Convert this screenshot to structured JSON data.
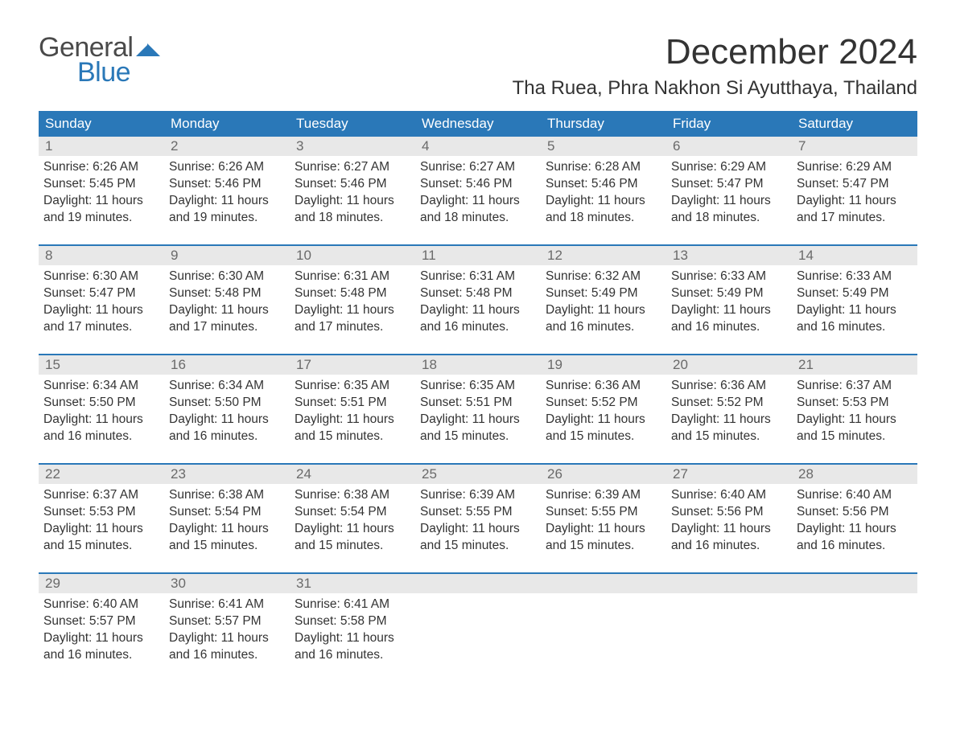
{
  "logo": {
    "general": "General",
    "blue": "Blue"
  },
  "title": "December 2024",
  "location": "Tha Ruea, Phra Nakhon Si Ayutthaya, Thailand",
  "colors": {
    "header_bg": "#2a78b8",
    "header_text": "#ffffff",
    "daynum_bg": "#e8e8e8",
    "daynum_text": "#6a6a6a",
    "body_text": "#333333",
    "week_border": "#2a78b8",
    "page_bg": "#ffffff"
  },
  "fonts": {
    "title_size_pt": 33,
    "location_size_pt": 18,
    "dow_size_pt": 13,
    "daynum_size_pt": 13,
    "body_size_pt": 11.5
  },
  "dow": [
    "Sunday",
    "Monday",
    "Tuesday",
    "Wednesday",
    "Thursday",
    "Friday",
    "Saturday"
  ],
  "weeks": [
    [
      {
        "n": "1",
        "sr": "Sunrise: 6:26 AM",
        "ss": "Sunset: 5:45 PM",
        "d1": "Daylight: 11 hours",
        "d2": "and 19 minutes."
      },
      {
        "n": "2",
        "sr": "Sunrise: 6:26 AM",
        "ss": "Sunset: 5:46 PM",
        "d1": "Daylight: 11 hours",
        "d2": "and 19 minutes."
      },
      {
        "n": "3",
        "sr": "Sunrise: 6:27 AM",
        "ss": "Sunset: 5:46 PM",
        "d1": "Daylight: 11 hours",
        "d2": "and 18 minutes."
      },
      {
        "n": "4",
        "sr": "Sunrise: 6:27 AM",
        "ss": "Sunset: 5:46 PM",
        "d1": "Daylight: 11 hours",
        "d2": "and 18 minutes."
      },
      {
        "n": "5",
        "sr": "Sunrise: 6:28 AM",
        "ss": "Sunset: 5:46 PM",
        "d1": "Daylight: 11 hours",
        "d2": "and 18 minutes."
      },
      {
        "n": "6",
        "sr": "Sunrise: 6:29 AM",
        "ss": "Sunset: 5:47 PM",
        "d1": "Daylight: 11 hours",
        "d2": "and 18 minutes."
      },
      {
        "n": "7",
        "sr": "Sunrise: 6:29 AM",
        "ss": "Sunset: 5:47 PM",
        "d1": "Daylight: 11 hours",
        "d2": "and 17 minutes."
      }
    ],
    [
      {
        "n": "8",
        "sr": "Sunrise: 6:30 AM",
        "ss": "Sunset: 5:47 PM",
        "d1": "Daylight: 11 hours",
        "d2": "and 17 minutes."
      },
      {
        "n": "9",
        "sr": "Sunrise: 6:30 AM",
        "ss": "Sunset: 5:48 PM",
        "d1": "Daylight: 11 hours",
        "d2": "and 17 minutes."
      },
      {
        "n": "10",
        "sr": "Sunrise: 6:31 AM",
        "ss": "Sunset: 5:48 PM",
        "d1": "Daylight: 11 hours",
        "d2": "and 17 minutes."
      },
      {
        "n": "11",
        "sr": "Sunrise: 6:31 AM",
        "ss": "Sunset: 5:48 PM",
        "d1": "Daylight: 11 hours",
        "d2": "and 16 minutes."
      },
      {
        "n": "12",
        "sr": "Sunrise: 6:32 AM",
        "ss": "Sunset: 5:49 PM",
        "d1": "Daylight: 11 hours",
        "d2": "and 16 minutes."
      },
      {
        "n": "13",
        "sr": "Sunrise: 6:33 AM",
        "ss": "Sunset: 5:49 PM",
        "d1": "Daylight: 11 hours",
        "d2": "and 16 minutes."
      },
      {
        "n": "14",
        "sr": "Sunrise: 6:33 AM",
        "ss": "Sunset: 5:49 PM",
        "d1": "Daylight: 11 hours",
        "d2": "and 16 minutes."
      }
    ],
    [
      {
        "n": "15",
        "sr": "Sunrise: 6:34 AM",
        "ss": "Sunset: 5:50 PM",
        "d1": "Daylight: 11 hours",
        "d2": "and 16 minutes."
      },
      {
        "n": "16",
        "sr": "Sunrise: 6:34 AM",
        "ss": "Sunset: 5:50 PM",
        "d1": "Daylight: 11 hours",
        "d2": "and 16 minutes."
      },
      {
        "n": "17",
        "sr": "Sunrise: 6:35 AM",
        "ss": "Sunset: 5:51 PM",
        "d1": "Daylight: 11 hours",
        "d2": "and 15 minutes."
      },
      {
        "n": "18",
        "sr": "Sunrise: 6:35 AM",
        "ss": "Sunset: 5:51 PM",
        "d1": "Daylight: 11 hours",
        "d2": "and 15 minutes."
      },
      {
        "n": "19",
        "sr": "Sunrise: 6:36 AM",
        "ss": "Sunset: 5:52 PM",
        "d1": "Daylight: 11 hours",
        "d2": "and 15 minutes."
      },
      {
        "n": "20",
        "sr": "Sunrise: 6:36 AM",
        "ss": "Sunset: 5:52 PM",
        "d1": "Daylight: 11 hours",
        "d2": "and 15 minutes."
      },
      {
        "n": "21",
        "sr": "Sunrise: 6:37 AM",
        "ss": "Sunset: 5:53 PM",
        "d1": "Daylight: 11 hours",
        "d2": "and 15 minutes."
      }
    ],
    [
      {
        "n": "22",
        "sr": "Sunrise: 6:37 AM",
        "ss": "Sunset: 5:53 PM",
        "d1": "Daylight: 11 hours",
        "d2": "and 15 minutes."
      },
      {
        "n": "23",
        "sr": "Sunrise: 6:38 AM",
        "ss": "Sunset: 5:54 PM",
        "d1": "Daylight: 11 hours",
        "d2": "and 15 minutes."
      },
      {
        "n": "24",
        "sr": "Sunrise: 6:38 AM",
        "ss": "Sunset: 5:54 PM",
        "d1": "Daylight: 11 hours",
        "d2": "and 15 minutes."
      },
      {
        "n": "25",
        "sr": "Sunrise: 6:39 AM",
        "ss": "Sunset: 5:55 PM",
        "d1": "Daylight: 11 hours",
        "d2": "and 15 minutes."
      },
      {
        "n": "26",
        "sr": "Sunrise: 6:39 AM",
        "ss": "Sunset: 5:55 PM",
        "d1": "Daylight: 11 hours",
        "d2": "and 15 minutes."
      },
      {
        "n": "27",
        "sr": "Sunrise: 6:40 AM",
        "ss": "Sunset: 5:56 PM",
        "d1": "Daylight: 11 hours",
        "d2": "and 16 minutes."
      },
      {
        "n": "28",
        "sr": "Sunrise: 6:40 AM",
        "ss": "Sunset: 5:56 PM",
        "d1": "Daylight: 11 hours",
        "d2": "and 16 minutes."
      }
    ],
    [
      {
        "n": "29",
        "sr": "Sunrise: 6:40 AM",
        "ss": "Sunset: 5:57 PM",
        "d1": "Daylight: 11 hours",
        "d2": "and 16 minutes."
      },
      {
        "n": "30",
        "sr": "Sunrise: 6:41 AM",
        "ss": "Sunset: 5:57 PM",
        "d1": "Daylight: 11 hours",
        "d2": "and 16 minutes."
      },
      {
        "n": "31",
        "sr": "Sunrise: 6:41 AM",
        "ss": "Sunset: 5:58 PM",
        "d1": "Daylight: 11 hours",
        "d2": "and 16 minutes."
      },
      {
        "empty": true
      },
      {
        "empty": true
      },
      {
        "empty": true
      },
      {
        "empty": true
      }
    ]
  ]
}
